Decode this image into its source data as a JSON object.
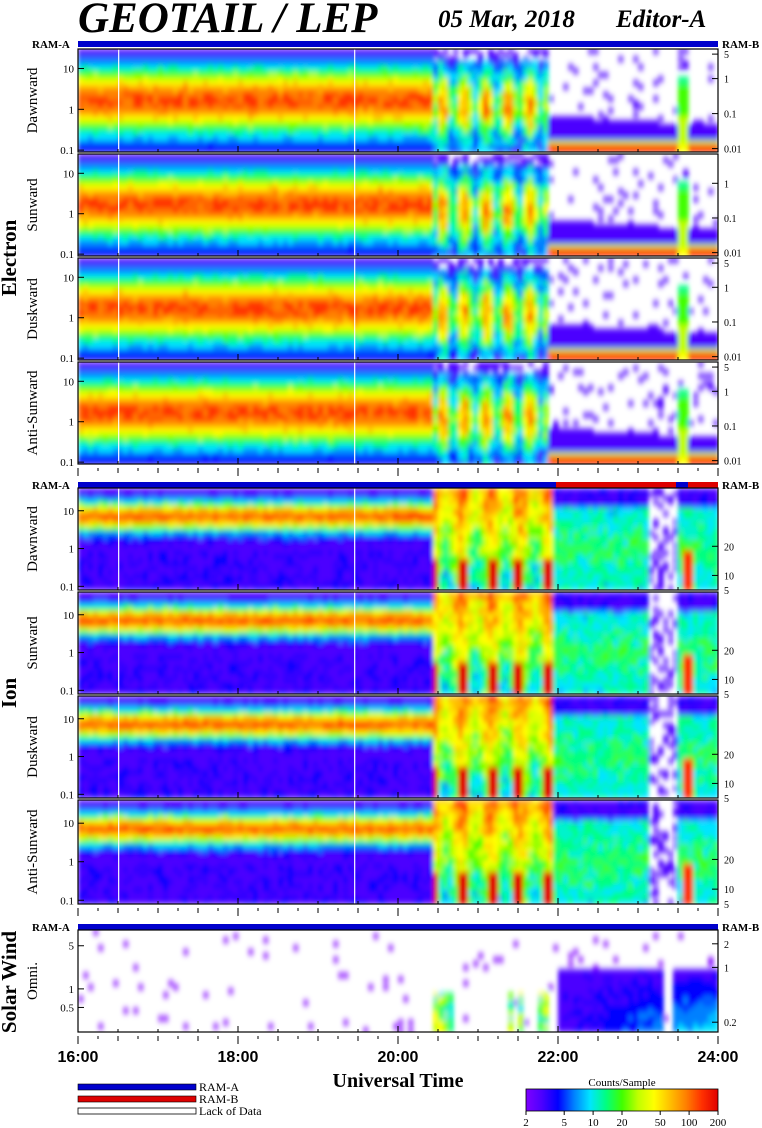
{
  "header": {
    "title": "GEOTAIL / LEP",
    "date": "05 Mar, 2018",
    "editor": "Editor-A"
  },
  "groups": {
    "electron": "Electron",
    "ion": "Ion",
    "solar_wind": "Solar Wind"
  },
  "mode_labels": {
    "ram_a": "RAM-A",
    "ram_b": "RAM-B"
  },
  "colors": {
    "ram_a": "#0000cc",
    "ram_b": "#dd0000",
    "lack_of_data": "#ffffff",
    "colormap": [
      "#7f00ff",
      "#4b00ff",
      "#0000ff",
      "#0080ff",
      "#00e5ff",
      "#00ff80",
      "#40ff00",
      "#c0ff00",
      "#ffff00",
      "#ffc000",
      "#ff8000",
      "#ff3000",
      "#e00000"
    ]
  },
  "chart_data": {
    "type": "heatmap",
    "x_axis": {
      "label": "Universal Time",
      "range": [
        "16:00",
        "24:00"
      ],
      "ticks": [
        "16:00",
        "18:00",
        "20:00",
        "22:00",
        "24:00"
      ]
    },
    "panels": [
      {
        "group": "Electron",
        "name": "Dawnward",
        "left_ticks": [
          "10",
          "1",
          "0.1"
        ],
        "left_range": [
          0.09,
          30
        ],
        "left_scale": "log",
        "right_ticks": [
          "5",
          "1",
          "0.1",
          "0.01"
        ],
        "right_range": [
          0.008,
          7
        ],
        "right_scale": "log",
        "mode": "RAM-A"
      },
      {
        "group": "Electron",
        "name": "Sunward",
        "left_ticks": [
          "10",
          "1",
          "0.1"
        ],
        "left_range": [
          0.09,
          30
        ],
        "left_scale": "log",
        "right_ticks": [
          "1",
          "0.1",
          "0.01"
        ],
        "right_range": [
          0.008,
          7
        ],
        "right_scale": "log",
        "mode": "RAM-A"
      },
      {
        "group": "Electron",
        "name": "Duskward",
        "left_ticks": [
          "10",
          "1",
          "0.1"
        ],
        "left_range": [
          0.09,
          30
        ],
        "left_scale": "log",
        "right_ticks": [
          "5",
          "1",
          "0.1",
          "0.01"
        ],
        "right_range": [
          0.008,
          7
        ],
        "right_scale": "log",
        "mode": "RAM-A"
      },
      {
        "group": "Electron",
        "name": "Anti-Sunward",
        "left_ticks": [
          "10",
          "1",
          "0.1"
        ],
        "left_range": [
          0.09,
          30
        ],
        "left_scale": "log",
        "right_ticks": [
          "5",
          "1",
          "0.1",
          "0.01"
        ],
        "right_range": [
          0.008,
          7
        ],
        "right_scale": "log",
        "mode": "RAM-A"
      },
      {
        "group": "Ion",
        "name": "Dawnward",
        "left_ticks": [
          "10",
          "1",
          "0.1"
        ],
        "left_range": [
          0.08,
          40
        ],
        "left_scale": "log",
        "right_ticks": [
          "20",
          "10",
          "5"
        ],
        "right_range": [
          5,
          40
        ],
        "right_scale": "linear",
        "mode": "RAM-A until ~21:55, RAM-B after"
      },
      {
        "group": "Ion",
        "name": "Sunward",
        "left_ticks": [
          "10",
          "1",
          "0.1"
        ],
        "left_range": [
          0.08,
          40
        ],
        "left_scale": "log",
        "right_ticks": [
          "20",
          "10",
          "5"
        ],
        "right_range": [
          5,
          40
        ],
        "right_scale": "linear"
      },
      {
        "group": "Ion",
        "name": "Duskward",
        "left_ticks": [
          "10",
          "1",
          "0.1"
        ],
        "left_range": [
          0.08,
          40
        ],
        "left_scale": "log",
        "right_ticks": [
          "20",
          "10",
          "5"
        ],
        "right_range": [
          5,
          40
        ],
        "right_scale": "linear"
      },
      {
        "group": "Ion",
        "name": "Anti-Sunward",
        "left_ticks": [
          "10",
          "1",
          "0.1"
        ],
        "left_range": [
          0.08,
          40
        ],
        "left_scale": "log",
        "right_ticks": [
          "20",
          "10",
          "5"
        ],
        "right_range": [
          5,
          40
        ],
        "right_scale": "linear"
      },
      {
        "group": "Solar Wind",
        "name": "Omni.",
        "left_ticks": [
          "5",
          "1",
          "0.5"
        ],
        "left_range": [
          0.2,
          9
        ],
        "left_scale": "log",
        "right_ticks": [
          "2",
          "1",
          "0.2"
        ],
        "right_range": [
          0.15,
          3
        ],
        "right_scale": "log",
        "mode": "RAM-A"
      }
    ],
    "legend": {
      "items": [
        "RAM-A",
        "RAM-B",
        "Lack of Data"
      ],
      "placement": "bottom-left"
    },
    "colorbar": {
      "title": "Counts/Sample",
      "ticks": [
        "2",
        "5",
        "10",
        "20",
        "50",
        "100",
        "200"
      ],
      "range": [
        2,
        200
      ],
      "scale": "log",
      "placement": "bottom-right"
    }
  }
}
